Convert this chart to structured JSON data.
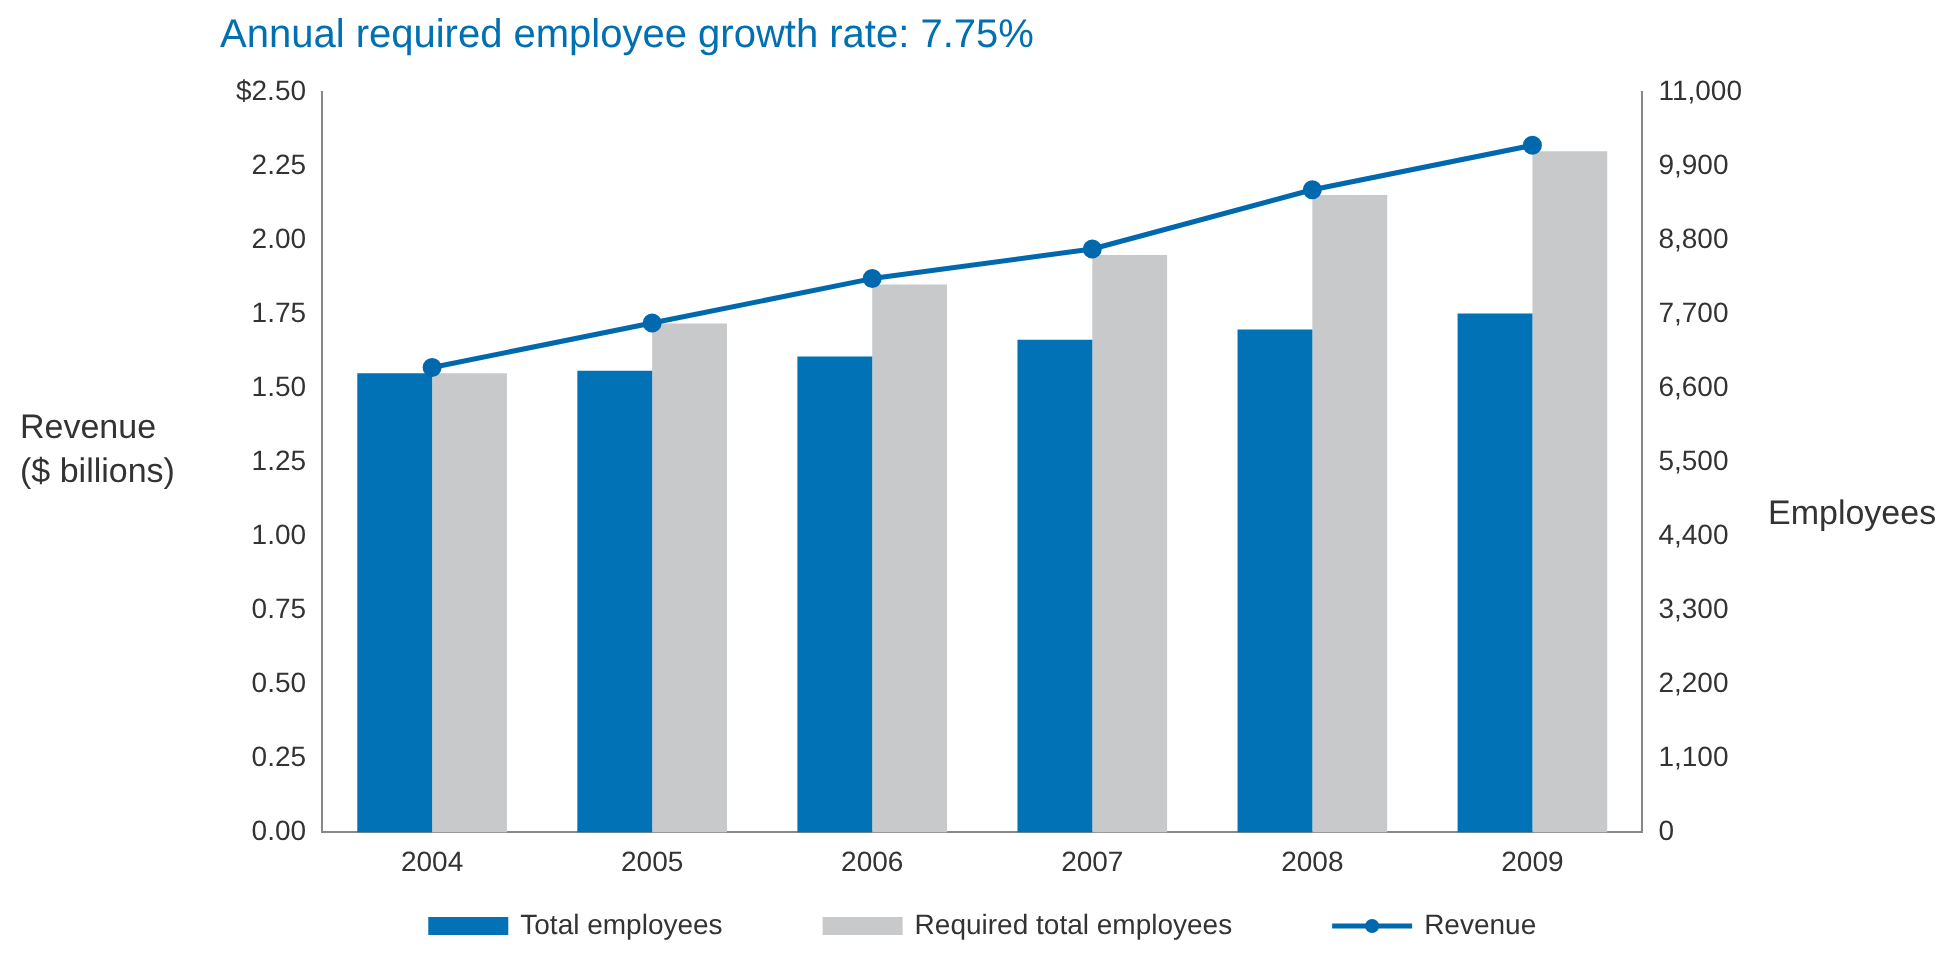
{
  "chart_data": {
    "type": "bar",
    "title": "Annual required employee growth rate: 7.75%",
    "ylabel": "Revenue\n($ billions)",
    "y2label": "Employees",
    "categories": [
      "2004",
      "2005",
      "2006",
      "2007",
      "2008",
      "2009"
    ],
    "series": [
      {
        "name": "Total employees",
        "axis": "y2",
        "color": "#0072b5",
        "values": [
          6820,
          6860,
          7070,
          7320,
          7470,
          7710
        ]
      },
      {
        "name": "Required total employees",
        "axis": "y2",
        "color": "#c8c9cb",
        "values": [
          6820,
          7560,
          8140,
          8580,
          9470,
          10120
        ]
      },
      {
        "name": "Revenue",
        "type": "line",
        "axis": "y",
        "color": "#0068ad",
        "marker": "circle",
        "values": [
          1.57,
          1.72,
          1.87,
          1.97,
          2.17,
          2.32
        ]
      }
    ],
    "ylim": [
      0,
      2.5
    ],
    "yticks": [
      {
        "value": 0,
        "label": "0.00"
      },
      {
        "value": 0.25,
        "label": "0.25"
      },
      {
        "value": 0.5,
        "label": "0.50"
      },
      {
        "value": 0.75,
        "label": "0.75"
      },
      {
        "value": 1,
        "label": "1.00"
      },
      {
        "value": 1.25,
        "label": "1.25"
      },
      {
        "value": 1.5,
        "label": "1.50"
      },
      {
        "value": 1.75,
        "label": "1.75"
      },
      {
        "value": 2,
        "label": "2.00"
      },
      {
        "value": 2.25,
        "label": "2.25"
      },
      {
        "value": 2.5,
        "label": "$2.50"
      }
    ],
    "y2lim": [
      0,
      11000
    ],
    "y2ticks": [
      0,
      {
        "value": 1100,
        "label": "1,100"
      },
      {
        "value": 2200,
        "label": "2,200"
      },
      {
        "value": 3300,
        "label": "3,300"
      },
      {
        "value": 4400,
        "label": "4,400"
      },
      {
        "value": 5500,
        "label": "5,500"
      },
      {
        "value": 6600,
        "label": "6,600"
      },
      {
        "value": 7700,
        "label": "7,700"
      },
      {
        "value": 8800,
        "label": "8,800"
      },
      {
        "value": 9900,
        "label": "9,900"
      },
      {
        "value": 11000,
        "label": "11,000"
      }
    ],
    "grid": false,
    "legend": "bottom"
  }
}
